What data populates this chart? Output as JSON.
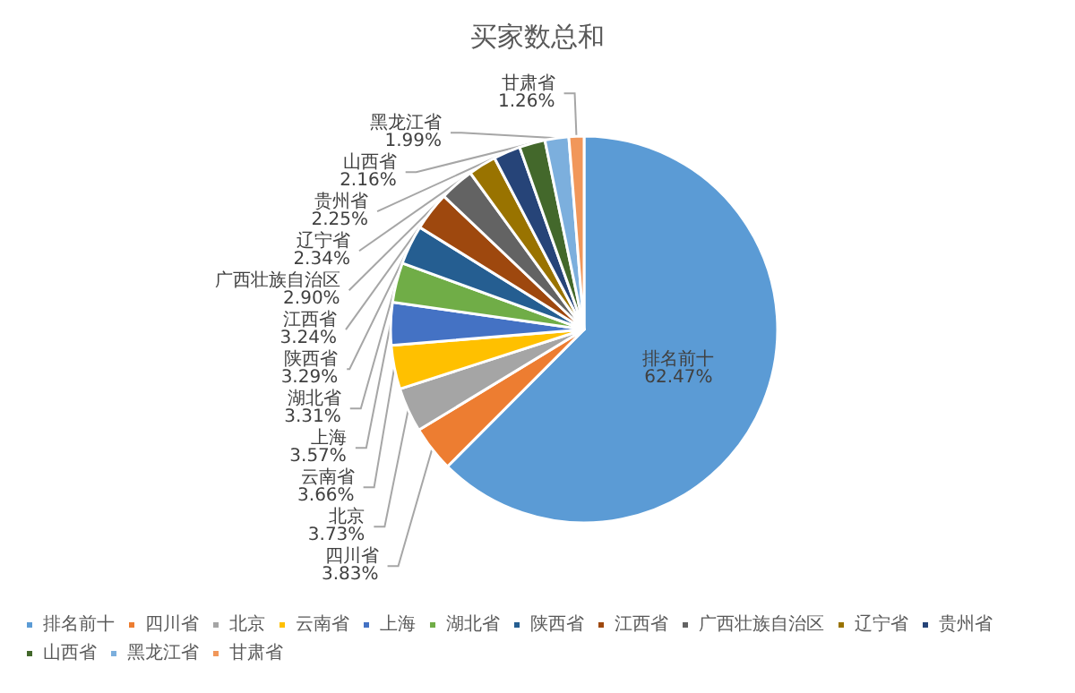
{
  "chart_data": {
    "type": "pie",
    "title": "买家数总和",
    "categories": [
      "排名前十",
      "四川省",
      "北京",
      "云南省",
      "上海",
      "湖北省",
      "陕西省",
      "江西省",
      "广西壮族自治区",
      "辽宁省",
      "贵州省",
      "山西省",
      "黑龙江省",
      "甘肃省"
    ],
    "values": [
      62.47,
      3.83,
      3.73,
      3.66,
      3.57,
      3.31,
      3.29,
      3.24,
      2.9,
      2.34,
      2.25,
      2.16,
      1.99,
      1.26
    ],
    "value_labels": [
      "62.47%",
      "3.83%",
      "3.73%",
      "3.66%",
      "3.57%",
      "3.31%",
      "3.29%",
      "3.24%",
      "2.90%",
      "2.34%",
      "2.25%",
      "2.16%",
      "1.99%",
      "1.26%"
    ],
    "colors": [
      "#5b9bd5",
      "#ed7d31",
      "#a5a5a5",
      "#ffc000",
      "#4472c4",
      "#70ad47",
      "#255e91",
      "#9e480e",
      "#636363",
      "#997300",
      "#264478",
      "#43682b",
      "#7cafdd",
      "#f1975a"
    ],
    "legend": "bottom"
  }
}
